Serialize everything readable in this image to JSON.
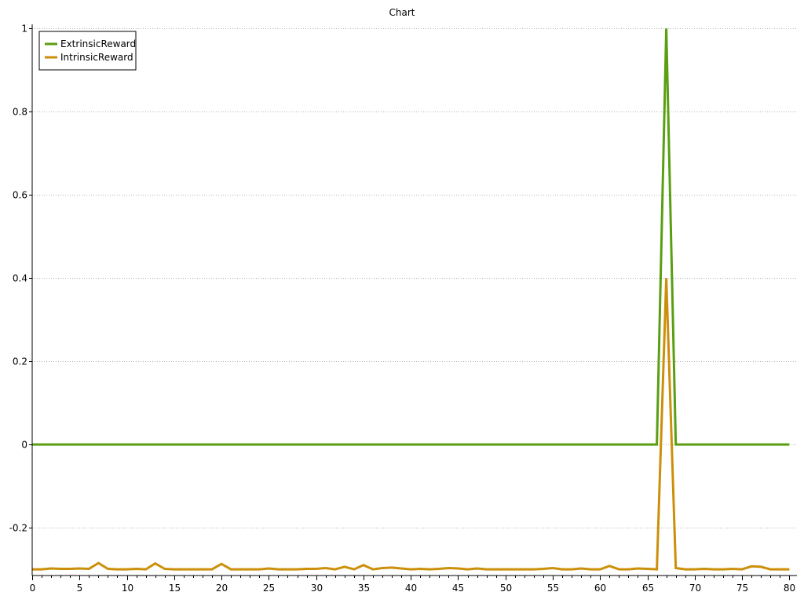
{
  "chart_data": {
    "type": "line",
    "title": "Chart",
    "xlabel": "",
    "ylabel": "",
    "xlim": [
      0,
      80.8
    ],
    "ylim": [
      -0.315,
      1.01
    ],
    "x_ticks": [
      0,
      5,
      10,
      15,
      20,
      25,
      30,
      35,
      40,
      45,
      50,
      55,
      60,
      65,
      70,
      75,
      80
    ],
    "x_minor_step": 1,
    "y_ticks": [
      -0.2,
      0,
      0.2,
      0.4,
      0.6,
      0.8,
      1
    ],
    "y_tick_labels": [
      "-0.2",
      "0",
      "0.2",
      "0.4",
      "0.6",
      "0.8",
      "1"
    ],
    "grid": "horizontal dotted",
    "legend_position": "top-left",
    "x": [
      0,
      1,
      2,
      3,
      4,
      5,
      6,
      7,
      8,
      9,
      10,
      11,
      12,
      13,
      14,
      15,
      16,
      17,
      18,
      19,
      20,
      21,
      22,
      23,
      24,
      25,
      26,
      27,
      28,
      29,
      30,
      31,
      32,
      33,
      34,
      35,
      36,
      37,
      38,
      39,
      40,
      41,
      42,
      43,
      44,
      45,
      46,
      47,
      48,
      49,
      50,
      51,
      52,
      53,
      54,
      55,
      56,
      57,
      58,
      59,
      60,
      61,
      62,
      63,
      64,
      65,
      66,
      67,
      68,
      69,
      70,
      71,
      72,
      73,
      74,
      75,
      76,
      77,
      78,
      79,
      80
    ],
    "series": [
      {
        "name": "ExtrinsicReward",
        "color": "#5a9e12",
        "values": [
          0,
          0,
          0,
          0,
          0,
          0,
          0,
          0,
          0,
          0,
          0,
          0,
          0,
          0,
          0,
          0,
          0,
          0,
          0,
          0,
          0,
          0,
          0,
          0,
          0,
          0,
          0,
          0,
          0,
          0,
          0,
          0,
          0,
          0,
          0,
          0,
          0,
          0,
          0,
          0,
          0,
          0,
          0,
          0,
          0,
          0,
          0,
          0,
          0,
          0,
          0,
          0,
          0,
          0,
          0,
          0,
          0,
          0,
          0,
          0,
          0,
          0,
          0,
          0,
          0,
          0,
          0,
          1,
          0,
          0,
          0,
          0,
          0,
          0,
          0,
          0,
          0,
          0,
          0,
          0,
          0
        ]
      },
      {
        "name": "IntrinsicReward",
        "color": "#cc8f0a",
        "values": [
          -0.3,
          -0.3,
          -0.298,
          -0.299,
          -0.299,
          -0.298,
          -0.299,
          -0.285,
          -0.299,
          -0.3,
          -0.3,
          -0.299,
          -0.3,
          -0.286,
          -0.299,
          -0.3,
          -0.3,
          -0.3,
          -0.3,
          -0.3,
          -0.287,
          -0.3,
          -0.3,
          -0.3,
          -0.3,
          -0.298,
          -0.3,
          -0.3,
          -0.3,
          -0.299,
          -0.299,
          -0.297,
          -0.3,
          -0.294,
          -0.3,
          -0.29,
          -0.3,
          -0.297,
          -0.296,
          -0.298,
          -0.3,
          -0.299,
          -0.3,
          -0.299,
          -0.297,
          -0.298,
          -0.3,
          -0.298,
          -0.3,
          -0.3,
          -0.3,
          -0.3,
          -0.3,
          -0.3,
          -0.299,
          -0.297,
          -0.3,
          -0.3,
          -0.298,
          -0.3,
          -0.3,
          -0.292,
          -0.3,
          -0.3,
          -0.298,
          -0.299,
          -0.3,
          0.4,
          -0.297,
          -0.3,
          -0.3,
          -0.299,
          -0.3,
          -0.3,
          -0.299,
          -0.3,
          -0.293,
          -0.294,
          -0.3,
          -0.3,
          -0.3
        ]
      }
    ]
  }
}
